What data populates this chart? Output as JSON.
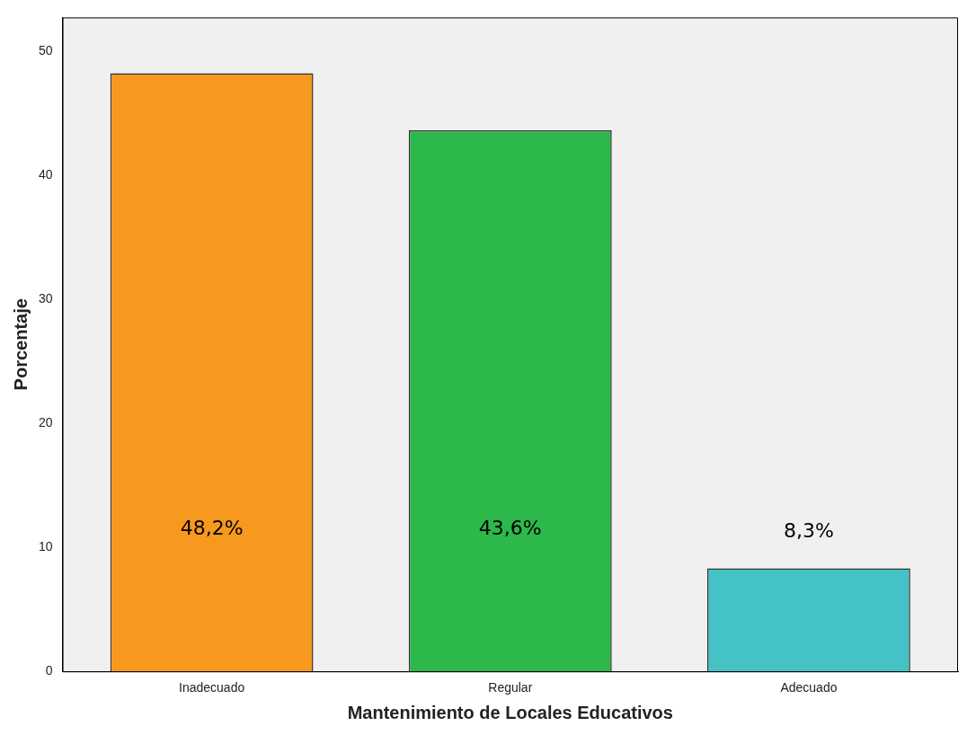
{
  "chart_data": {
    "type": "bar",
    "xlabel": "Mantenimiento de Locales Educativos",
    "ylabel": "Porcentaje",
    "categories": [
      "Inadecuado",
      "Regular",
      "Adecuado"
    ],
    "values": [
      48.2,
      43.6,
      8.3
    ],
    "colors": [
      "#f7991f",
      "#2db84b",
      "#45c2c5"
    ],
    "value_labels": [
      "48,2%",
      "43,6%",
      "8,3%"
    ],
    "ylim": [
      0,
      52.7
    ],
    "yticks": [
      0,
      10,
      20,
      30,
      40,
      50
    ],
    "grid": false,
    "legend": false
  }
}
